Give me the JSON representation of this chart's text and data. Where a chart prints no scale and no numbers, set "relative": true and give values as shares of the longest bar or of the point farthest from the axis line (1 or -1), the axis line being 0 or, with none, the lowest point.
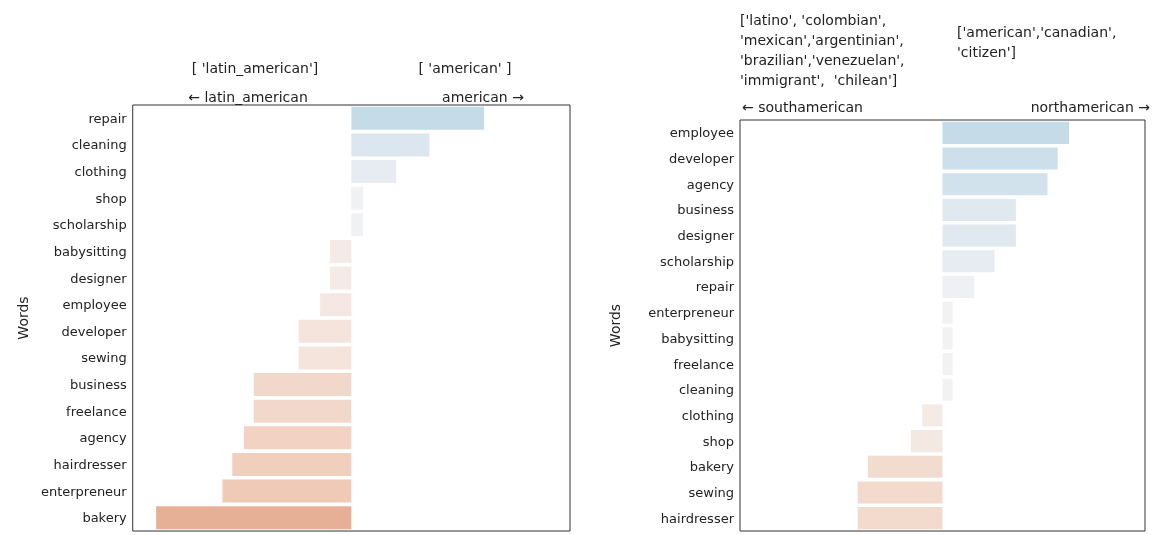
{
  "chart_data": [
    {
      "type": "bar",
      "orientation": "horizontal",
      "relative": true,
      "ylabel": "Words",
      "tick_labels": "y",
      "annotations": [
        "[ 'latin_american']",
        "[ 'american' ]",
        "← latin_american",
        "american →"
      ],
      "categories": [
        "repair",
        "cleaning",
        "clothing",
        "shop",
        "scholarship",
        "babysitting",
        "designer",
        "employee",
        "developer",
        "sewing",
        "business",
        "freelance",
        "agency",
        "hairdresser",
        "enterpreneur",
        "bakery"
      ],
      "values": [
        0.68,
        0.4,
        0.23,
        0.06,
        0.06,
        -0.11,
        -0.11,
        -0.16,
        -0.27,
        -0.27,
        -0.5,
        -0.5,
        -0.55,
        -0.61,
        -0.66,
        -1
      ],
      "colors": [
        "#c6dbe8",
        "#dce6ef",
        "#e6ecf2",
        "#f0f1f3",
        "#f0f1f3",
        "#f5ebe6",
        "#f5ebe6",
        "#f5e8e2",
        "#f4e4dc",
        "#f4e4dc",
        "#f2d8ca",
        "#f2d8ca",
        "#f2d2c2",
        "#f0cfbd",
        "#efcab6",
        "#e6b096"
      ]
    },
    {
      "type": "bar",
      "orientation": "horizontal",
      "relative": true,
      "ylabel": "Words",
      "tick_labels": "y",
      "annotations": [
        "['latino', 'colombian', 'mexican','argentinian', 'brazilian','venezuelan', 'immigrant',  'chilean']",
        "['american','canadian', 'citizen']",
        "← southamerican",
        "northamerican →"
      ],
      "categories": [
        "employee",
        "developer",
        "agency",
        "business",
        "designer",
        "scholarship",
        "repair",
        "enterpreneur",
        "babysitting",
        "freelance",
        "cleaning",
        "clothing",
        "shop",
        "bakery",
        "sewing",
        "hairdresser"
      ],
      "values": [
        1,
        0.91,
        0.83,
        0.58,
        0.58,
        0.41,
        0.25,
        0.08,
        0.08,
        0.08,
        0.08,
        -0.16,
        -0.25,
        -0.59,
        -0.67,
        -0.67
      ],
      "colors": [
        "#c6dbe8",
        "#cddfea",
        "#d2e2ec",
        "#e0e8f0",
        "#e0e8f0",
        "#e6ecf2",
        "#eef0f3",
        "#f3f2f2",
        "#f3f2f2",
        "#f3f2f2",
        "#f3f2f2",
        "#f5ebe6",
        "#f4e8e3",
        "#f2dccf",
        "#f2dacc",
        "#f2dacc"
      ]
    }
  ]
}
